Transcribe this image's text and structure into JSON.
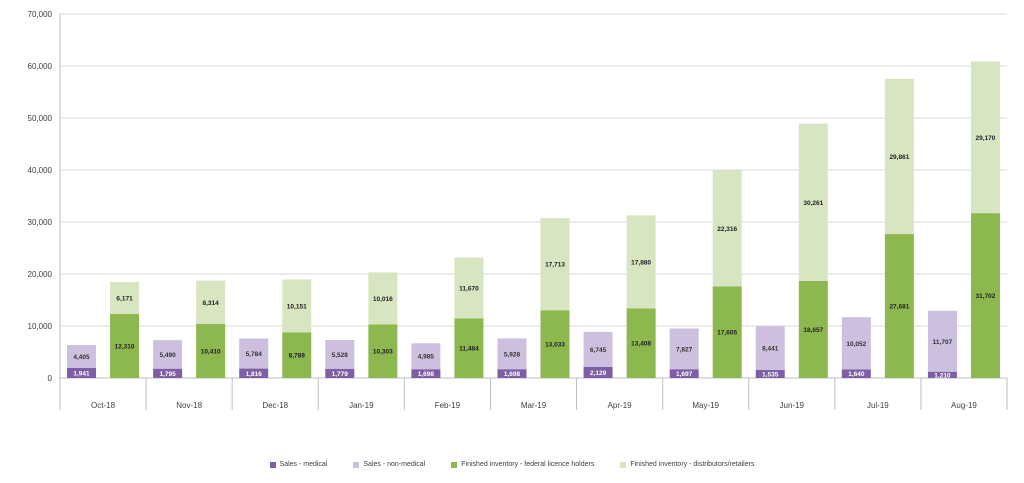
{
  "chart_data": {
    "type": "bar",
    "stacked": "two-stacks-per-category",
    "categories": [
      "Oct-18",
      "Nov-18",
      "Dec-18",
      "Jan-19",
      "Feb-19",
      "Mar-19",
      "Apr-19",
      "May-19",
      "Jun-19",
      "Jul-19",
      "Aug-19"
    ],
    "series": [
      {
        "name": "Sales - medical",
        "stack": "sales",
        "color": "#7e5fa6",
        "values": [
          1941,
          1795,
          1816,
          1779,
          1698,
          1698,
          2129,
          1697,
          1535,
          1640,
          1210
        ],
        "labels": [
          "1,941",
          "1,795",
          "1,816",
          "1,779",
          "1,698",
          "1,698",
          "2,129",
          "1,697",
          "1,535",
          "1,640",
          "1,210"
        ]
      },
      {
        "name": "Sales - non-medical",
        "stack": "sales",
        "color": "#ccc0de",
        "values": [
          4405,
          5490,
          5784,
          5528,
          4985,
          5928,
          6745,
          7827,
          8441,
          10052,
          11707
        ],
        "labels": [
          "4,405",
          "5,490",
          "5,784",
          "5,528",
          "4,985",
          "5,928",
          "6,745",
          "7,827",
          "8,441",
          "10,052",
          "11,707"
        ]
      },
      {
        "name": "Finished inventory - federal licence holders",
        "stack": "inventory",
        "color": "#8db74f",
        "values": [
          12310,
          10410,
          8789,
          10303,
          11484,
          13033,
          13408,
          17605,
          18657,
          27681,
          31702
        ],
        "labels": [
          "12,310",
          "10,410",
          "8,789",
          "10,303",
          "11,484",
          "13,033",
          "13,408",
          "17,605",
          "18,657",
          "27,681",
          "31,702"
        ]
      },
      {
        "name": "Finished inventory - distributors/retailers",
        "stack": "inventory",
        "color": "#d8e5c1",
        "values": [
          6171,
          8314,
          10151,
          10016,
          11670,
          17713,
          17880,
          22316,
          30261,
          29861,
          29170
        ],
        "labels": [
          "6,171",
          "8,314",
          "10,151",
          "10,016",
          "11,670",
          "17,713",
          "17,880",
          "22,316",
          "30,261",
          "29,861",
          "29,170"
        ]
      }
    ],
    "yticks": [
      "0",
      "10,000",
      "20,000",
      "30,000",
      "40,000",
      "50,000",
      "60,000",
      "70,000"
    ],
    "ylim": [
      0,
      70000
    ],
    "grid": true,
    "legend_position": "bottom",
    "title": "",
    "xlabel": "",
    "ylabel": ""
  }
}
